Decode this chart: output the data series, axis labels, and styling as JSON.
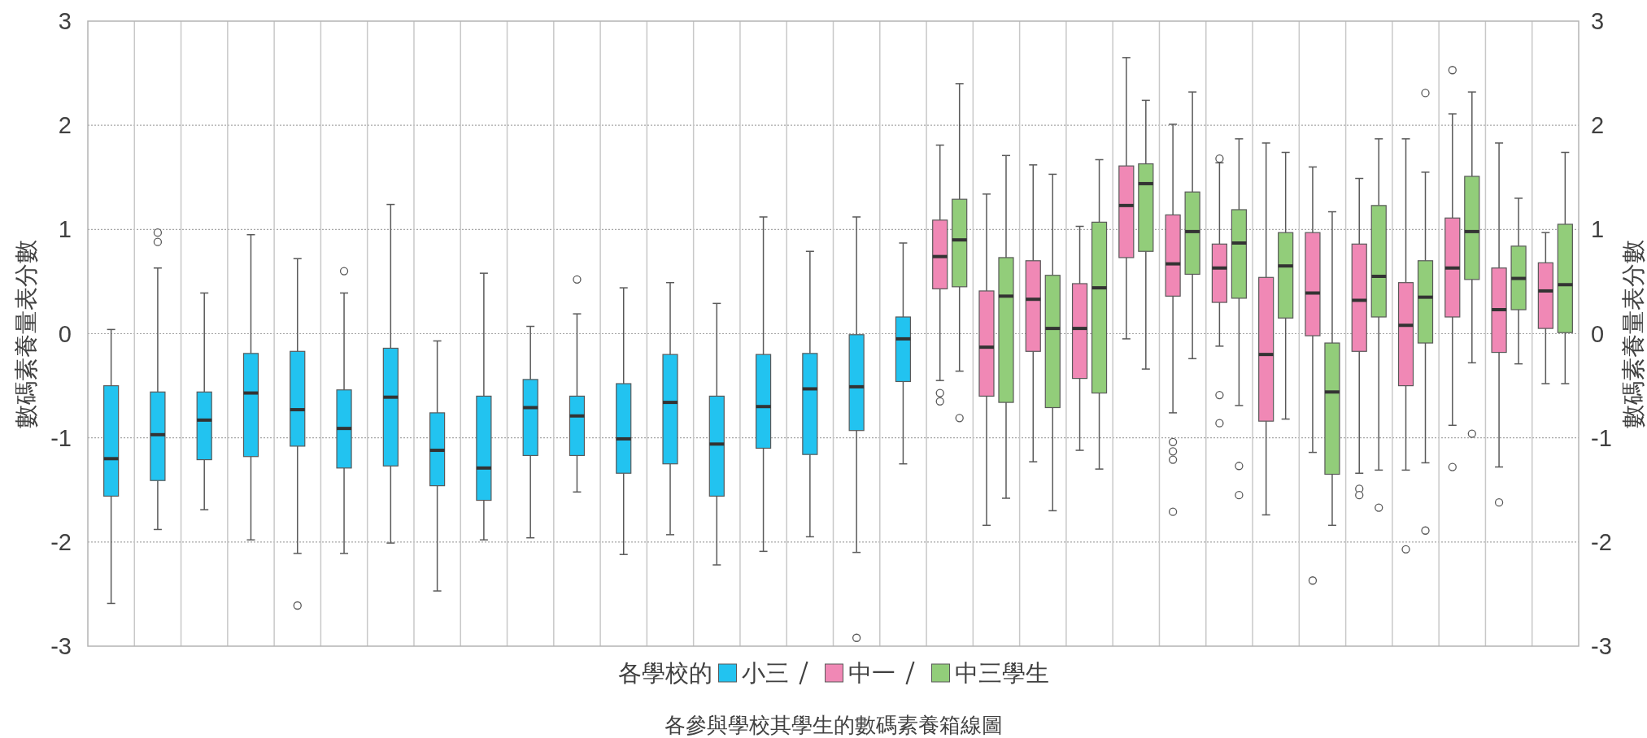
{
  "chart_data": {
    "type": "box",
    "title": "各參與學校其學生的數碼素養箱線圖",
    "ylabel": "數碼素養量表分數",
    "y2label": "數碼素養量表分數",
    "legend_title": "各學校的",
    "legend": "bottom",
    "grid": true,
    "categories": [
      null,
      null,
      null,
      null,
      null,
      null,
      null,
      null,
      null,
      null,
      null,
      null,
      null,
      null,
      null,
      null,
      null,
      null,
      null,
      null,
      null,
      null,
      null,
      null,
      null,
      null,
      null,
      null,
      null,
      null,
      null,
      null
    ],
    "ylim": [
      -3,
      3
    ],
    "yticks": [
      -3,
      -2,
      -1,
      0,
      1,
      2,
      3
    ],
    "y2lim": [
      -3,
      3
    ],
    "y2ticks": [
      -3,
      -2,
      -1,
      0,
      1,
      2,
      3
    ],
    "series": [
      {
        "name": "小三",
        "color": "#22c3f0",
        "boxes": [
          {
            "low": -2.59,
            "q1": -1.56,
            "median": -1.2,
            "q3": -0.5,
            "high": 0.04
          },
          {
            "low": -1.88,
            "q1": -1.41,
            "median": -0.97,
            "q3": -0.56,
            "high": 0.63,
            "outliers": [
              0.97,
              0.88
            ]
          },
          {
            "low": -1.69,
            "q1": -1.21,
            "median": -0.83,
            "q3": -0.56,
            "high": 0.39
          },
          {
            "low": -1.98,
            "q1": -1.18,
            "median": -0.57,
            "q3": -0.19,
            "high": 0.95
          },
          {
            "low": -2.11,
            "q1": -1.08,
            "median": -0.73,
            "q3": -0.17,
            "high": 0.72,
            "outliers": [
              -2.61
            ]
          },
          {
            "low": -2.11,
            "q1": -1.29,
            "median": -0.91,
            "q3": -0.54,
            "high": 0.39,
            "outliers": [
              0.6
            ]
          },
          {
            "low": -2.01,
            "q1": -1.27,
            "median": -0.61,
            "q3": -0.14,
            "high": 1.24
          },
          {
            "low": -2.47,
            "q1": -1.46,
            "median": -1.12,
            "q3": -0.76,
            "high": -0.07
          },
          {
            "low": -1.98,
            "q1": -1.6,
            "median": -1.29,
            "q3": -0.6,
            "high": 0.58
          },
          {
            "low": -1.96,
            "q1": -1.17,
            "median": -0.71,
            "q3": -0.44,
            "high": 0.07
          },
          {
            "low": -1.52,
            "q1": -1.17,
            "median": -0.79,
            "q3": -0.6,
            "high": 0.19,
            "outliers": [
              0.52
            ]
          },
          {
            "low": -2.12,
            "q1": -1.34,
            "median": -1.01,
            "q3": -0.48,
            "high": 0.44
          },
          {
            "low": -1.93,
            "q1": -1.25,
            "median": -0.66,
            "q3": -0.2,
            "high": 0.49
          },
          {
            "low": -2.22,
            "q1": -1.56,
            "median": -1.06,
            "q3": -0.6,
            "high": 0.29
          },
          {
            "low": -2.09,
            "q1": -1.1,
            "median": -0.7,
            "q3": -0.2,
            "high": 1.12
          },
          {
            "low": -1.95,
            "q1": -1.16,
            "median": -0.53,
            "q3": -0.19,
            "high": 0.79
          },
          {
            "low": -2.1,
            "q1": -0.93,
            "median": -0.51,
            "q3": -0.01,
            "high": 1.12,
            "outliers": [
              -2.92
            ]
          },
          {
            "low": -1.25,
            "q1": -0.46,
            "median": -0.05,
            "q3": 0.16,
            "high": 0.87
          },
          null,
          null,
          null,
          null,
          null,
          null,
          null,
          null,
          null,
          null,
          null,
          null,
          null,
          null
        ]
      },
      {
        "name": "中一",
        "color": "#f088b5",
        "boxes": [
          null,
          null,
          null,
          null,
          null,
          null,
          null,
          null,
          null,
          null,
          null,
          null,
          null,
          null,
          null,
          null,
          null,
          null,
          {
            "low": -0.45,
            "q1": 0.43,
            "median": 0.74,
            "q3": 1.09,
            "high": 1.81,
            "outliers": [
              -0.57,
              -0.65
            ]
          },
          {
            "low": -1.84,
            "q1": -0.6,
            "median": -0.13,
            "q3": 0.41,
            "high": 1.34
          },
          {
            "low": -1.23,
            "q1": -0.17,
            "median": 0.33,
            "q3": 0.7,
            "high": 1.62
          },
          {
            "low": -1.12,
            "q1": -0.43,
            "median": 0.05,
            "q3": 0.48,
            "high": 1.03
          },
          {
            "low": -0.05,
            "q1": 0.73,
            "median": 1.23,
            "q3": 1.61,
            "high": 2.65
          },
          {
            "low": -0.76,
            "q1": 0.36,
            "median": 0.67,
            "q3": 1.14,
            "high": 2.01,
            "outliers": [
              -1.04,
              -1.13,
              -1.21,
              -1.71
            ]
          },
          {
            "low": -0.12,
            "q1": 0.3,
            "median": 0.63,
            "q3": 0.86,
            "high": 1.64,
            "outliers": [
              1.68,
              -0.59,
              -0.86
            ]
          },
          {
            "low": -1.74,
            "q1": -0.84,
            "median": -0.2,
            "q3": 0.54,
            "high": 1.83
          },
          {
            "low": -1.14,
            "q1": -0.02,
            "median": 0.39,
            "q3": 0.97,
            "high": 1.6,
            "outliers": [
              -2.37
            ]
          },
          {
            "low": -1.34,
            "q1": -0.17,
            "median": 0.32,
            "q3": 0.86,
            "high": 1.49,
            "outliers": [
              -1.49,
              -1.55
            ]
          },
          {
            "low": -1.31,
            "q1": -0.5,
            "median": 0.08,
            "q3": 0.49,
            "high": 1.87,
            "outliers": [
              -2.07
            ]
          },
          {
            "low": -0.88,
            "q1": 0.16,
            "median": 0.63,
            "q3": 1.11,
            "high": 2.11,
            "outliers": [
              2.53,
              -1.28
            ]
          },
          {
            "low": -1.28,
            "q1": -0.18,
            "median": 0.23,
            "q3": 0.63,
            "high": 1.83,
            "outliers": [
              -1.62
            ]
          },
          {
            "low": -0.48,
            "q1": 0.05,
            "median": 0.41,
            "q3": 0.68,
            "high": 0.97
          }
        ]
      },
      {
        "name": "中三學生",
        "color": "#92cd7a",
        "boxes": [
          null,
          null,
          null,
          null,
          null,
          null,
          null,
          null,
          null,
          null,
          null,
          null,
          null,
          null,
          null,
          null,
          null,
          null,
          {
            "low": -0.36,
            "q1": 0.45,
            "median": 0.9,
            "q3": 1.29,
            "high": 2.4,
            "outliers": [
              -0.81
            ]
          },
          {
            "low": -1.58,
            "q1": -0.66,
            "median": 0.36,
            "q3": 0.73,
            "high": 1.71
          },
          {
            "low": -1.7,
            "q1": -0.71,
            "median": 0.05,
            "q3": 0.56,
            "high": 1.53
          },
          {
            "low": -1.3,
            "q1": -0.57,
            "median": 0.44,
            "q3": 1.07,
            "high": 1.67
          },
          {
            "low": -0.34,
            "q1": 0.79,
            "median": 1.44,
            "q3": 1.63,
            "high": 2.24
          },
          {
            "low": -0.24,
            "q1": 0.57,
            "median": 0.98,
            "q3": 1.36,
            "high": 2.32
          },
          {
            "low": -0.69,
            "q1": 0.34,
            "median": 0.87,
            "q3": 1.19,
            "high": 1.87,
            "outliers": [
              -1.27,
              -1.55
            ]
          },
          {
            "low": -0.82,
            "q1": 0.15,
            "median": 0.65,
            "q3": 0.97,
            "high": 1.74
          },
          {
            "low": -1.84,
            "q1": -1.35,
            "median": -0.56,
            "q3": -0.09,
            "high": 1.17
          },
          {
            "low": -1.31,
            "q1": 0.16,
            "median": 0.55,
            "q3": 1.23,
            "high": 1.87,
            "outliers": [
              -1.67
            ]
          },
          {
            "low": -1.24,
            "q1": -0.09,
            "median": 0.35,
            "q3": 0.7,
            "high": 1.55,
            "outliers": [
              2.31,
              -1.89
            ]
          },
          {
            "low": -0.28,
            "q1": 0.52,
            "median": 0.98,
            "q3": 1.51,
            "high": 2.32,
            "outliers": [
              -0.96
            ]
          },
          {
            "low": -0.29,
            "q1": 0.23,
            "median": 0.53,
            "q3": 0.84,
            "high": 1.3
          },
          {
            "low": -0.48,
            "q1": 0.01,
            "median": 0.47,
            "q3": 1.05,
            "high": 1.74
          }
        ]
      }
    ]
  }
}
